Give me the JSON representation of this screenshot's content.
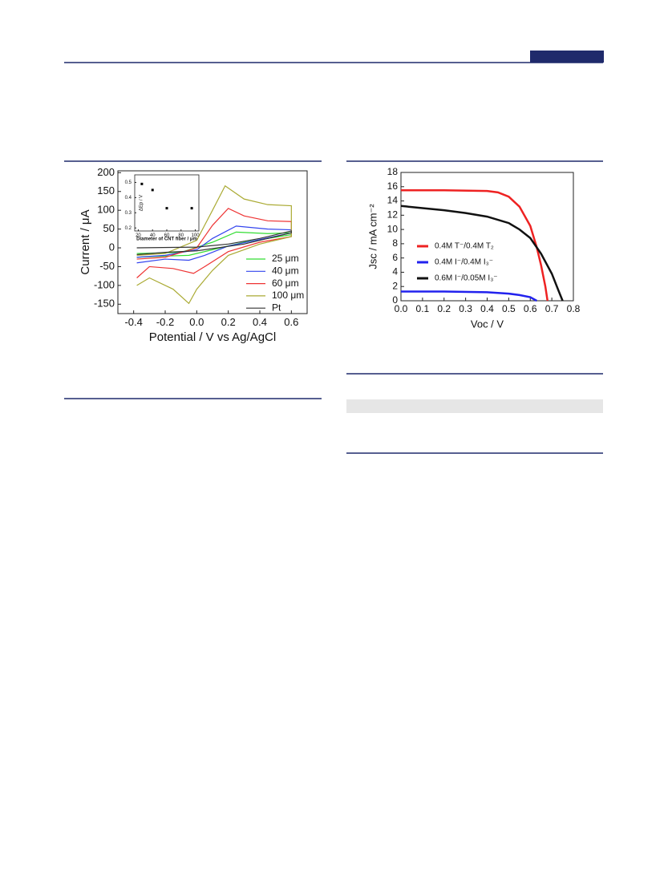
{
  "chart_data": [
    {
      "type": "line",
      "xlabel": "Potential / V vs Ag/AgCl",
      "ylabel": "Current / μA",
      "legend": "lower right",
      "xlim": [
        -0.5,
        0.7
      ],
      "ylim": [
        -175,
        205
      ],
      "xticks": [
        -0.4,
        -0.2,
        {
          "value": 0,
          "label": "0.0"
        },
        0.2,
        0.4,
        0.6
      ],
      "yticks": [
        -150,
        -100,
        -50,
        0,
        50,
        100,
        150,
        200
      ],
      "series": [
        {
          "name": "25 μm",
          "color": "#33dd33",
          "x": [
            -0.38,
            -0.1,
            0.1,
            0.25,
            0.45,
            0.6,
            0.6,
            0.3,
            0.1,
            -0.05,
            -0.2,
            -0.38
          ],
          "values": [
            -15,
            -12,
            15,
            42,
            38,
            40,
            35,
            15,
            -5,
            -20,
            -22,
            -25
          ]
        },
        {
          "name": "40 μm",
          "color": "#3344ee",
          "x": [
            -0.38,
            -0.2,
            0,
            0.1,
            0.25,
            0.45,
            0.6,
            0.6,
            0.4,
            0.2,
            0.05,
            -0.05,
            -0.2,
            -0.38
          ],
          "values": [
            -25,
            -20,
            -5,
            25,
            58,
            50,
            48,
            40,
            22,
            5,
            -20,
            -33,
            -30,
            -40
          ]
        },
        {
          "name": "60 μm",
          "color": "#ee3333",
          "x": [
            -0.38,
            -0.2,
            0,
            0.1,
            0.2,
            0.3,
            0.45,
            0.6,
            0.6,
            0.4,
            0.2,
            0.05,
            -0.02,
            -0.15,
            -0.3,
            -0.38
          ],
          "values": [
            -30,
            -25,
            0,
            60,
            105,
            85,
            72,
            70,
            30,
            15,
            -10,
            -50,
            -68,
            -55,
            -50,
            -80
          ]
        },
        {
          "name": "100 μm",
          "color": "#aaaa33",
          "x": [
            -0.38,
            -0.2,
            0,
            0.1,
            0.18,
            0.3,
            0.45,
            0.6,
            0.6,
            0.4,
            0.2,
            0.1,
            0,
            -0.05,
            -0.15,
            -0.3,
            -0.38
          ],
          "values": [
            -20,
            -15,
            20,
            100,
            165,
            130,
            115,
            112,
            30,
            10,
            -20,
            -60,
            -110,
            -148,
            -110,
            -80,
            -100
          ]
        },
        {
          "name": "Pt",
          "color": "#333333",
          "x": [
            -0.38,
            0,
            0.2,
            0.4,
            0.6,
            0.6,
            0.3,
            0,
            -0.2,
            -0.38
          ],
          "values": [
            0,
            2,
            10,
            25,
            45,
            40,
            10,
            -8,
            -12,
            -18
          ]
        }
      ]
    },
    {
      "type": "scatter",
      "xlabel": "Diameter of CNT fiber / μm",
      "ylabel": "ΔEp / V",
      "xlim": [
        15,
        105
      ],
      "ylim": [
        0.18,
        0.55
      ],
      "xticks": [
        20,
        40,
        60,
        80,
        100
      ],
      "yticks": [
        0.2,
        0.3,
        0.4,
        0.5
      ],
      "color": "#000000",
      "x": [
        25,
        40,
        60,
        95
      ],
      "values": [
        0.49,
        0.45,
        0.33,
        0.33
      ]
    },
    {
      "type": "line",
      "xlabel": "Voc / V",
      "ylabel": "Jsc / mA cm⁻²",
      "legend": "center left",
      "xlim": [
        0,
        0.8
      ],
      "ylim": [
        0,
        18
      ],
      "xticks": [
        {
          "value": 0,
          "label": "0.0"
        },
        0.1,
        0.2,
        0.3,
        0.4,
        0.5,
        0.6,
        0.7,
        0.8
      ],
      "yticks": [
        0,
        2,
        4,
        6,
        8,
        10,
        12,
        14,
        16,
        18
      ],
      "series": [
        {
          "name": "0.4M T⁻/0.4M T₂",
          "color": "#ee2222",
          "x": [
            0,
            0.2,
            0.4,
            0.45,
            0.5,
            0.55,
            0.6,
            0.63,
            0.65,
            0.67,
            0.68
          ],
          "values": [
            15.5,
            15.5,
            15.4,
            15.2,
            14.6,
            13.2,
            10.5,
            7.5,
            5,
            2,
            0
          ]
        },
        {
          "name": "0.4M I⁻/0.4M I₃⁻",
          "color": "#2222ee",
          "x": [
            0,
            0.2,
            0.4,
            0.5,
            0.55,
            0.6,
            0.63
          ],
          "values": [
            1.3,
            1.3,
            1.2,
            1.0,
            0.8,
            0.5,
            0
          ]
        },
        {
          "name": "0.6M I⁻/0.05M I₃⁻",
          "color": "#111111",
          "x": [
            0,
            0.1,
            0.2,
            0.3,
            0.4,
            0.5,
            0.55,
            0.6,
            0.65,
            0.7,
            0.73,
            0.75
          ],
          "values": [
            13.3,
            13,
            12.7,
            12.3,
            11.8,
            10.9,
            10,
            8.8,
            6.6,
            3.8,
            1.5,
            0
          ]
        }
      ]
    }
  ]
}
